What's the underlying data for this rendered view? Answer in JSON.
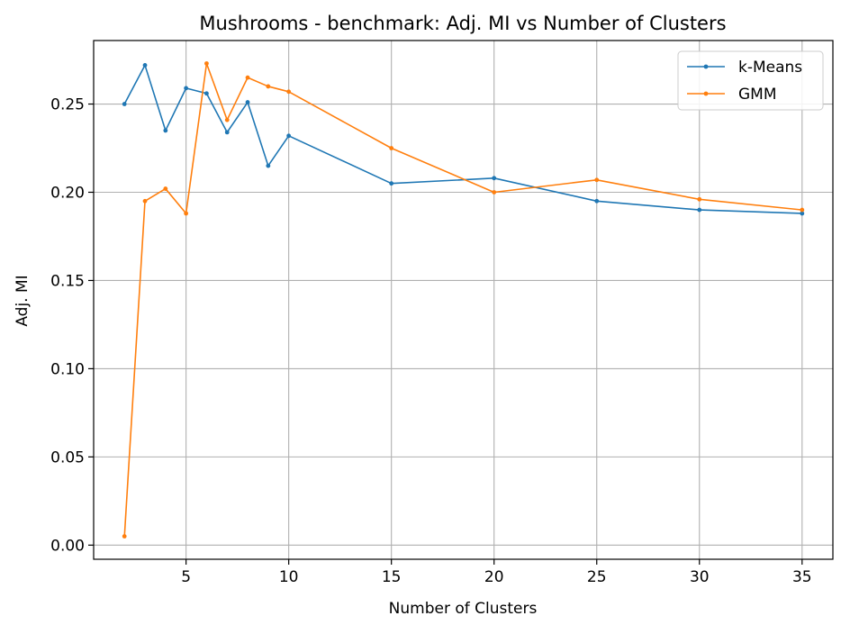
{
  "chart_data": {
    "type": "line",
    "title": "Mushrooms - benchmark: Adj. MI vs Number of Clusters",
    "xlabel": "Number of Clusters",
    "ylabel": "Adj. MI",
    "xlim": [
      0.5,
      36.5
    ],
    "ylim": [
      -0.008,
      0.286
    ],
    "x_ticks": [
      5,
      10,
      15,
      20,
      25,
      30,
      35
    ],
    "x_tick_labels": [
      "5",
      "10",
      "15",
      "20",
      "25",
      "30",
      "35"
    ],
    "y_ticks": [
      0.0,
      0.05,
      0.1,
      0.15,
      0.2,
      0.25
    ],
    "y_tick_labels": [
      "0.00",
      "0.05",
      "0.10",
      "0.15",
      "0.20",
      "0.25"
    ],
    "grid": true,
    "legend_position": "top-right",
    "x": [
      2,
      3,
      4,
      5,
      6,
      7,
      8,
      9,
      10,
      15,
      20,
      25,
      30,
      35
    ],
    "series": [
      {
        "name": "k-Means",
        "color": "#1f77b4",
        "values": [
          0.25,
          0.272,
          0.235,
          0.259,
          0.256,
          0.234,
          0.251,
          0.215,
          0.232,
          0.205,
          0.208,
          0.195,
          0.19,
          0.188
        ]
      },
      {
        "name": "GMM",
        "color": "#ff7f0e",
        "values": [
          0.005,
          0.195,
          0.202,
          0.188,
          0.273,
          0.241,
          0.265,
          0.26,
          0.257,
          0.225,
          0.2,
          0.207,
          0.196,
          0.19
        ]
      }
    ]
  }
}
